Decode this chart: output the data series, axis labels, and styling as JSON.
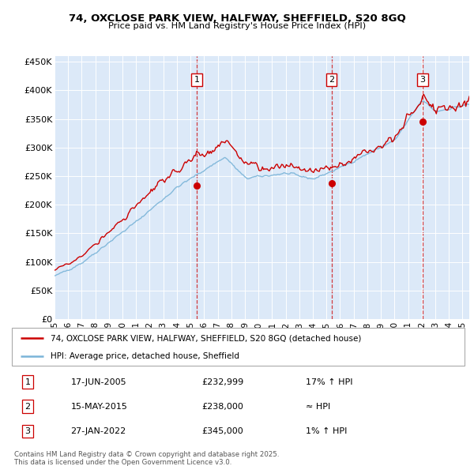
{
  "title_line1": "74, OXCLOSE PARK VIEW, HALFWAY, SHEFFIELD, S20 8GQ",
  "title_line2": "Price paid vs. HM Land Registry's House Price Index (HPI)",
  "xlim_start": 1995.0,
  "xlim_end": 2025.5,
  "ylim_min": 0,
  "ylim_max": 460000,
  "yticks": [
    0,
    50000,
    100000,
    150000,
    200000,
    250000,
    300000,
    350000,
    400000,
    450000
  ],
  "ytick_labels": [
    "£0",
    "£50K",
    "£100K",
    "£150K",
    "£200K",
    "£250K",
    "£300K",
    "£350K",
    "£400K",
    "£450K"
  ],
  "xtick_labels": [
    "95",
    "96",
    "97",
    "98",
    "99",
    "00",
    "01",
    "02",
    "03",
    "04",
    "05",
    "06",
    "07",
    "08",
    "09",
    "10",
    "11",
    "12",
    "13",
    "14",
    "15",
    "16",
    "17",
    "18",
    "19",
    "20",
    "21",
    "22",
    "23",
    "24",
    "25"
  ],
  "xtick_values": [
    1995,
    1996,
    1997,
    1998,
    1999,
    2000,
    2001,
    2002,
    2003,
    2004,
    2005,
    2006,
    2007,
    2008,
    2009,
    2010,
    2011,
    2012,
    2013,
    2014,
    2015,
    2016,
    2017,
    2018,
    2019,
    2020,
    2021,
    2022,
    2023,
    2024,
    2025
  ],
  "plot_bg_color": "#dce9f8",
  "grid_color": "#ffffff",
  "hpi_color": "#7ab4d8",
  "price_color": "#cc0000",
  "sale1_x": 2005.46,
  "sale1_y": 232999,
  "sale1_label": "1",
  "sale1_date": "17-JUN-2005",
  "sale1_price": "£232,999",
  "sale1_hpi": "17% ↑ HPI",
  "sale2_x": 2015.37,
  "sale2_y": 238000,
  "sale2_label": "2",
  "sale2_date": "15-MAY-2015",
  "sale2_price": "£238,000",
  "sale2_hpi": "≈ HPI",
  "sale3_x": 2022.07,
  "sale3_y": 345000,
  "sale3_label": "3",
  "sale3_date": "27-JAN-2022",
  "sale3_price": "£345,000",
  "sale3_hpi": "1% ↑ HPI",
  "legend_label1": "74, OXCLOSE PARK VIEW, HALFWAY, SHEFFIELD, S20 8GQ (detached house)",
  "legend_label2": "HPI: Average price, detached house, Sheffield",
  "footer1": "Contains HM Land Registry data © Crown copyright and database right 2025.",
  "footer2": "This data is licensed under the Open Government Licence v3.0."
}
